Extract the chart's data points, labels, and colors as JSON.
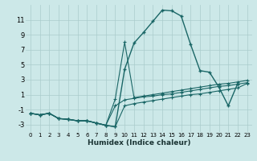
{
  "xlabel": "Humidex (Indice chaleur)",
  "bg_color": "#cce8e8",
  "grid_color": "#aacccc",
  "line_color": "#1a6666",
  "ylim": [
    -4,
    13
  ],
  "xlim": [
    -0.5,
    23.5
  ],
  "yticks": [
    -3,
    -1,
    1,
    3,
    5,
    7,
    9,
    11
  ],
  "xticks": [
    0,
    1,
    2,
    3,
    4,
    5,
    6,
    7,
    8,
    9,
    10,
    11,
    12,
    13,
    14,
    15,
    16,
    17,
    18,
    19,
    20,
    21,
    22,
    23
  ],
  "main_x": [
    0,
    1,
    2,
    3,
    4,
    5,
    6,
    7,
    8,
    9,
    10,
    11,
    12,
    13,
    14,
    15,
    16,
    17,
    18,
    19,
    20,
    21,
    22
  ],
  "main_y": [
    -1.5,
    -1.7,
    -1.5,
    -2.2,
    -2.3,
    -2.5,
    -2.5,
    -2.8,
    -3.1,
    -3.3,
    4.4,
    7.9,
    9.3,
    10.8,
    12.3,
    12.2,
    11.5,
    7.7,
    4.2,
    4.0,
    2.0,
    -0.5,
    2.5
  ],
  "flat1_x": [
    0,
    1,
    2,
    3,
    4,
    5,
    6,
    7,
    8,
    9,
    10,
    11,
    12,
    13,
    14,
    15,
    16,
    17,
    18,
    19,
    20,
    21,
    22,
    23
  ],
  "flat1_y": [
    -1.5,
    -1.7,
    -1.5,
    -2.2,
    -2.3,
    -2.5,
    -2.5,
    -2.8,
    -3.1,
    -3.3,
    -0.5,
    -0.2,
    0.0,
    0.2,
    0.4,
    0.6,
    0.8,
    1.0,
    1.1,
    1.3,
    1.5,
    1.7,
    1.9,
    2.5
  ],
  "flat2_x": [
    0,
    1,
    2,
    3,
    4,
    5,
    6,
    7,
    8,
    9,
    10,
    11,
    12,
    13,
    14,
    15,
    16,
    17,
    18,
    19,
    20,
    21,
    22,
    23
  ],
  "flat2_y": [
    -1.5,
    -1.7,
    -1.5,
    -2.2,
    -2.3,
    -2.5,
    -2.5,
    -2.8,
    -3.1,
    -0.5,
    0.3,
    0.5,
    0.7,
    0.8,
    1.0,
    1.1,
    1.3,
    1.5,
    1.7,
    1.9,
    2.1,
    2.2,
    2.4,
    2.6
  ],
  "flat3_x": [
    0,
    1,
    2,
    3,
    4,
    5,
    6,
    7,
    8,
    9,
    10,
    11,
    12,
    13,
    14,
    15,
    16,
    17,
    18,
    19,
    20,
    21,
    22,
    23
  ],
  "flat3_y": [
    -1.5,
    -1.7,
    -1.5,
    -2.2,
    -2.3,
    -2.5,
    -2.5,
    -2.8,
    -3.1,
    0.4,
    8.0,
    0.6,
    0.8,
    1.0,
    1.2,
    1.4,
    1.6,
    1.8,
    2.0,
    2.2,
    2.4,
    2.5,
    2.7,
    2.9
  ]
}
